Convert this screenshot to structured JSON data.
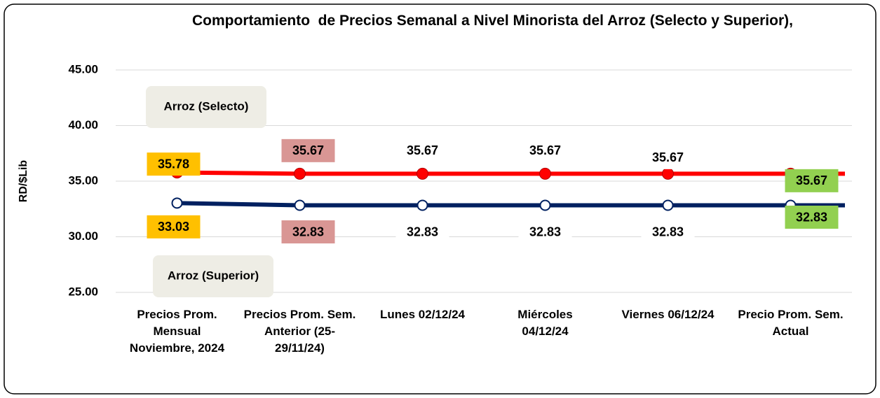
{
  "chart_data": {
    "type": "line",
    "title": "Comportamiento  de Precios Semanal a Nivel Minorista del Arroz (Selecto y Superior),",
    "y_label": "RD/$Lib",
    "categories": [
      "Precios Prom. Mensual Noviembre, 2024",
      "Precios Prom. Sem. Anterior (25-29/11/24)",
      "Lunes 02/12/24",
      "Miércoles 04/12/24",
      "Viernes 06/12/24",
      "Precio Prom. Sem. Actual"
    ],
    "series": [
      {
        "name": "Arroz (Selecto)",
        "color": "#ff0000",
        "values": [
          35.78,
          35.67,
          35.67,
          35.67,
          35.67,
          35.67
        ],
        "value_label_colors": [
          "#ffc000",
          "#d99694",
          "#ffffff",
          "#ffffff",
          "#ffffff",
          "#92d050"
        ]
      },
      {
        "name": "Arroz (Superior)",
        "color": "#002060",
        "values": [
          33.03,
          32.83,
          32.83,
          32.83,
          32.83,
          32.83
        ],
        "value_label_colors": [
          "#ffc000",
          "#d99694",
          "#ffffff",
          "#ffffff",
          "#ffffff",
          "#92d050"
        ]
      }
    ],
    "ylim": [
      25,
      45
    ],
    "yticks": [
      {
        "value": 25,
        "label": "25.00"
      },
      {
        "value": 30,
        "label": "30.00"
      },
      {
        "value": 35,
        "label": "35.00"
      },
      {
        "value": 40,
        "label": "40.00"
      },
      {
        "value": 45,
        "label": "45.00"
      }
    ],
    "grid": true
  }
}
